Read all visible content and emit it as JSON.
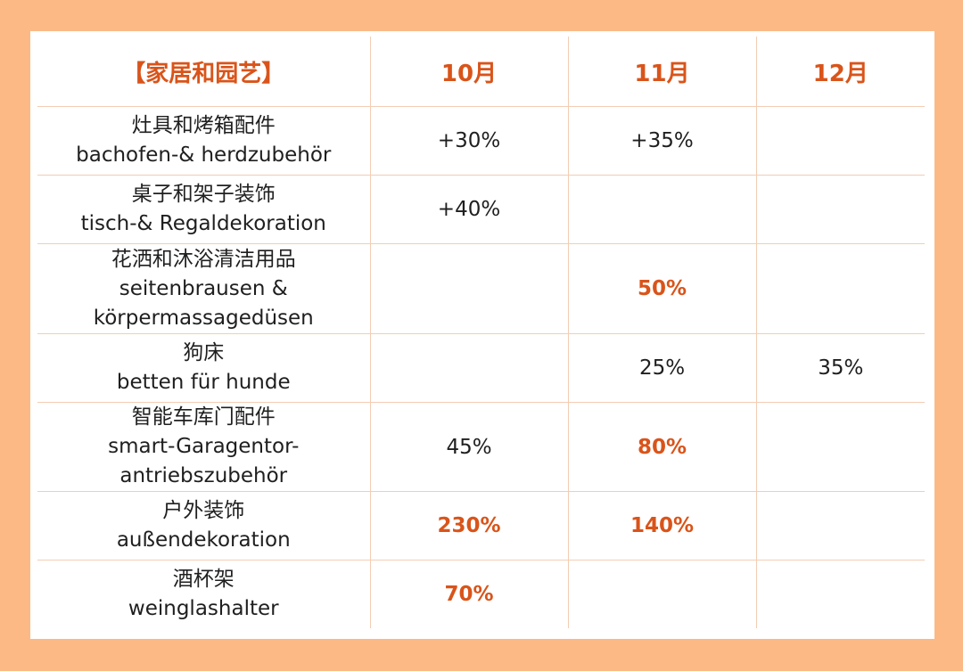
{
  "colors": {
    "background": "#fcb986",
    "card": "#ffffff",
    "accent": "#d9541a",
    "grid": "#f3cdb4",
    "text": "#1f1f1f"
  },
  "table": {
    "header": [
      "【家居和园艺】",
      "10月",
      "11月",
      "12月"
    ],
    "rows": [
      {
        "name_lines": [
          "灶具和烤箱配件",
          "bachofen-& herdzubehör"
        ],
        "values": [
          "+30%",
          "+35%",
          ""
        ],
        "highlight": [
          false,
          false,
          false
        ]
      },
      {
        "name_lines": [
          "桌子和架子装饰",
          "tisch-& Regaldekoration"
        ],
        "values": [
          "+40%",
          "",
          ""
        ],
        "highlight": [
          false,
          false,
          false
        ]
      },
      {
        "name_lines": [
          "花洒和沐浴清洁用品",
          "seitenbrausen &",
          "körpermassagedüsen"
        ],
        "values": [
          "",
          "50%",
          ""
        ],
        "highlight": [
          false,
          true,
          false
        ]
      },
      {
        "name_lines": [
          "狗床",
          "betten für hunde"
        ],
        "values": [
          "",
          "25%",
          "35%"
        ],
        "highlight": [
          false,
          false,
          false
        ]
      },
      {
        "name_lines": [
          "智能车库门配件",
          "smart-Garagentor-",
          "antriebszubehör"
        ],
        "values": [
          "45%",
          "80%",
          ""
        ],
        "highlight": [
          false,
          true,
          false
        ]
      },
      {
        "name_lines": [
          "户外装饰",
          "außendekoration"
        ],
        "values": [
          "230%",
          "140%",
          ""
        ],
        "highlight": [
          true,
          true,
          false
        ]
      },
      {
        "name_lines": [
          "酒杯架",
          "weinglashalter"
        ],
        "values": [
          "70%",
          "",
          ""
        ],
        "highlight": [
          true,
          false,
          false
        ]
      }
    ]
  }
}
